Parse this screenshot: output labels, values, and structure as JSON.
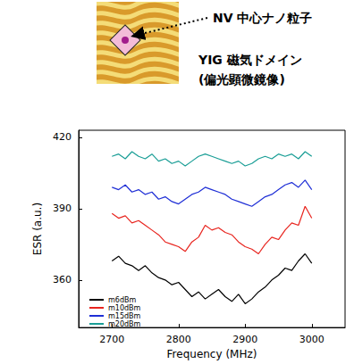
{
  "chart_data": {
    "type": "line",
    "annotations": [
      "NV 中心ナノ粒子",
      "YIG 磁気ドメイン",
      "(偏光顕微鏡像)"
    ],
    "x_label": "Frequency (MHz)",
    "y_label": "ESR (a.u.)",
    "x": [
      2700,
      2710,
      2720,
      2730,
      2740,
      2750,
      2760,
      2770,
      2780,
      2790,
      2800,
      2810,
      2820,
      2830,
      2840,
      2850,
      2860,
      2870,
      2880,
      2890,
      2900,
      2910,
      2920,
      2930,
      2940,
      2950,
      2960,
      2970,
      2980,
      2990,
      3000
    ],
    "series": [
      {
        "name": "m6dBm",
        "color": "#000000",
        "values": [
          368,
          370,
          367,
          366,
          364,
          366,
          363,
          361,
          360,
          358,
          359,
          356,
          353,
          355,
          352,
          354,
          356,
          353,
          351,
          354,
          350,
          352,
          355,
          357,
          360,
          362,
          365,
          364,
          368,
          371,
          367
        ]
      },
      {
        "name": "m10dBm",
        "color": "#e8251f",
        "values": [
          388,
          386,
          387,
          384,
          385,
          383,
          381,
          379,
          376,
          375,
          374,
          372,
          376,
          378,
          383,
          381,
          382,
          380,
          379,
          376,
          374,
          373,
          371,
          375,
          378,
          377,
          381,
          384,
          383,
          391,
          386
        ]
      },
      {
        "name": "m15dBm",
        "color": "#1f2fd6",
        "values": [
          399,
          398,
          400,
          397,
          398,
          396,
          397,
          394,
          395,
          393,
          392,
          394,
          396,
          397,
          399,
          398,
          397,
          396,
          394,
          393,
          392,
          391,
          393,
          395,
          396,
          398,
          400,
          401,
          399,
          402,
          398
        ]
      },
      {
        "name": "m20dBm",
        "color": "#1a9e96",
        "values": [
          412,
          413,
          411,
          414,
          412,
          411,
          413,
          410,
          411,
          409,
          410,
          408,
          410,
          412,
          413,
          412,
          411,
          410,
          409,
          410,
          408,
          409,
          411,
          412,
          411,
          413,
          412,
          413,
          411,
          414,
          412
        ]
      }
    ],
    "xlim": [
      2650,
      3050
    ],
    "xticks": [
      2700,
      2800,
      2900,
      3000
    ],
    "ylim": [
      340,
      423
    ],
    "yticks": [
      360,
      390,
      420
    ],
    "grid": false,
    "legend": "lower left"
  }
}
